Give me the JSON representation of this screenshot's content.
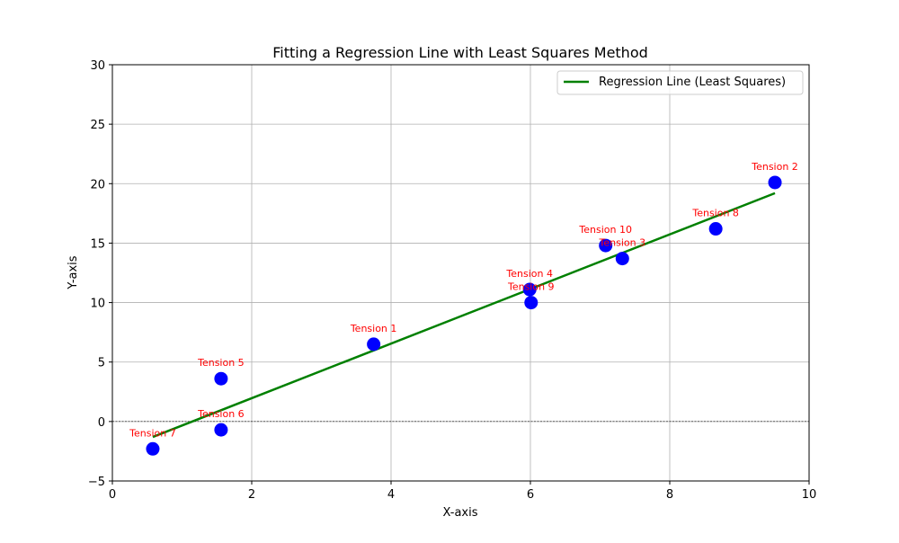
{
  "chart_data": {
    "type": "scatter",
    "title": "Fitting a Regression Line with Least Squares Method",
    "xlabel": "X-axis",
    "ylabel": "Y-axis",
    "xlim": [
      0,
      10
    ],
    "ylim": [
      -5,
      30
    ],
    "x_ticks": [
      0,
      2,
      4,
      6,
      8,
      10
    ],
    "y_ticks": [
      -5,
      0,
      5,
      10,
      15,
      20,
      25,
      30
    ],
    "x_tick_labels": [
      "0",
      "2",
      "4",
      "6",
      "8",
      "10"
    ],
    "y_tick_labels": [
      "−5",
      "0",
      "5",
      "10",
      "15",
      "20",
      "25",
      "30"
    ],
    "grid": true,
    "zero_line": true,
    "legend_position": "top-right",
    "points": [
      {
        "label": "Tension 1",
        "x": 3.75,
        "y": 6.5
      },
      {
        "label": "Tension 2",
        "x": 9.51,
        "y": 20.1
      },
      {
        "label": "Tension 3",
        "x": 7.32,
        "y": 13.7
      },
      {
        "label": "Tension 4",
        "x": 5.99,
        "y": 11.1
      },
      {
        "label": "Tension 5",
        "x": 1.56,
        "y": 3.6
      },
      {
        "label": "Tension 6",
        "x": 1.56,
        "y": -0.7
      },
      {
        "label": "Tension 7",
        "x": 0.58,
        "y": -2.3
      },
      {
        "label": "Tension 8",
        "x": 8.66,
        "y": 16.2
      },
      {
        "label": "Tension 9",
        "x": 6.01,
        "y": 10.0
      },
      {
        "label": "Tension 10",
        "x": 7.08,
        "y": 14.8
      }
    ],
    "regression": {
      "name": "Regression Line (Least Squares)",
      "x": [
        0.58,
        9.51
      ],
      "y": [
        -1.3,
        19.2
      ]
    },
    "colors": {
      "points": "#0000ff",
      "line": "#008000",
      "labels": "#ff0000",
      "grid": "#b0b0b0"
    }
  }
}
